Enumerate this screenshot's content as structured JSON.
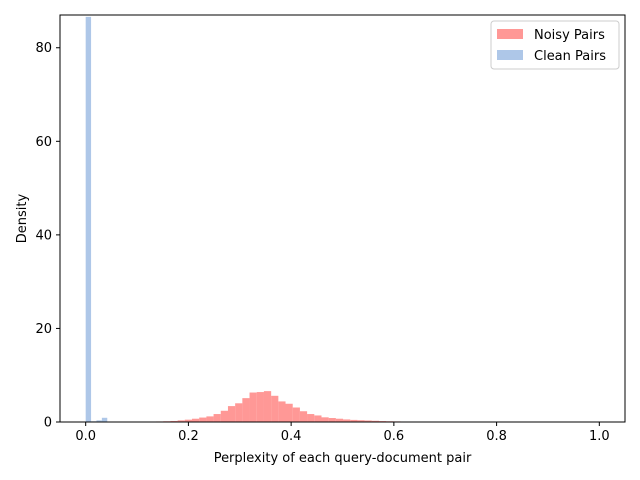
{
  "chart_data": {
    "type": "bar",
    "title": "",
    "xlabel": "Perplexity of each query-document pair",
    "ylabel": "Density",
    "xlim": [
      -0.05,
      1.05
    ],
    "ylim": [
      0,
      87
    ],
    "xticks": [
      0.0,
      0.2,
      0.4,
      0.6,
      0.8,
      1.0
    ],
    "xtick_labels": [
      "0.0",
      "0.2",
      "0.4",
      "0.6",
      "0.8",
      "1.0"
    ],
    "yticks": [
      0,
      20,
      40,
      60,
      80
    ],
    "ytick_labels": [
      "0",
      "20",
      "40",
      "60",
      "80"
    ],
    "grid": false,
    "legend_position": "top-right",
    "series": [
      {
        "name": "Noisy Pairs",
        "color": "#ff9896",
        "bin_width": 0.0141,
        "bins": [
          [
            0.095,
            0.04
          ],
          [
            0.109,
            0.06
          ],
          [
            0.123,
            0.08
          ],
          [
            0.137,
            0.12
          ],
          [
            0.151,
            0.16
          ],
          [
            0.165,
            0.22
          ],
          [
            0.179,
            0.35
          ],
          [
            0.193,
            0.5
          ],
          [
            0.207,
            0.7
          ],
          [
            0.221,
            0.95
          ],
          [
            0.235,
            1.2
          ],
          [
            0.249,
            1.7
          ],
          [
            0.263,
            2.4
          ],
          [
            0.277,
            3.4
          ],
          [
            0.291,
            4.0
          ],
          [
            0.305,
            5.1
          ],
          [
            0.319,
            6.3
          ],
          [
            0.333,
            6.4
          ],
          [
            0.347,
            6.6
          ],
          [
            0.361,
            5.6
          ],
          [
            0.375,
            4.4
          ],
          [
            0.389,
            3.9
          ],
          [
            0.403,
            3.1
          ],
          [
            0.417,
            2.3
          ],
          [
            0.431,
            1.7
          ],
          [
            0.445,
            1.4
          ],
          [
            0.459,
            1.0
          ],
          [
            0.473,
            0.85
          ],
          [
            0.487,
            0.7
          ],
          [
            0.501,
            0.55
          ],
          [
            0.515,
            0.45
          ],
          [
            0.529,
            0.38
          ],
          [
            0.543,
            0.32
          ],
          [
            0.557,
            0.26
          ],
          [
            0.571,
            0.2
          ],
          [
            0.585,
            0.16
          ],
          [
            0.599,
            0.13
          ],
          [
            0.613,
            0.1
          ],
          [
            0.627,
            0.09
          ],
          [
            0.641,
            0.08
          ],
          [
            0.655,
            0.07
          ],
          [
            0.669,
            0.06
          ],
          [
            0.683,
            0.05
          ],
          [
            0.697,
            0.05
          ],
          [
            0.711,
            0.04
          ],
          [
            0.725,
            0.04
          ],
          [
            0.739,
            0.03
          ],
          [
            0.753,
            0.03
          ],
          [
            0.767,
            0.03
          ],
          [
            0.781,
            0.02
          ]
        ]
      },
      {
        "name": "Clean Pairs",
        "color": "#aec7e8",
        "bin_width": 0.0105,
        "bins": [
          [
            0.0,
            86.6
          ],
          [
            0.0105,
            0.15
          ],
          [
            0.021,
            0.35
          ],
          [
            0.0315,
            0.9
          ]
        ]
      }
    ]
  }
}
